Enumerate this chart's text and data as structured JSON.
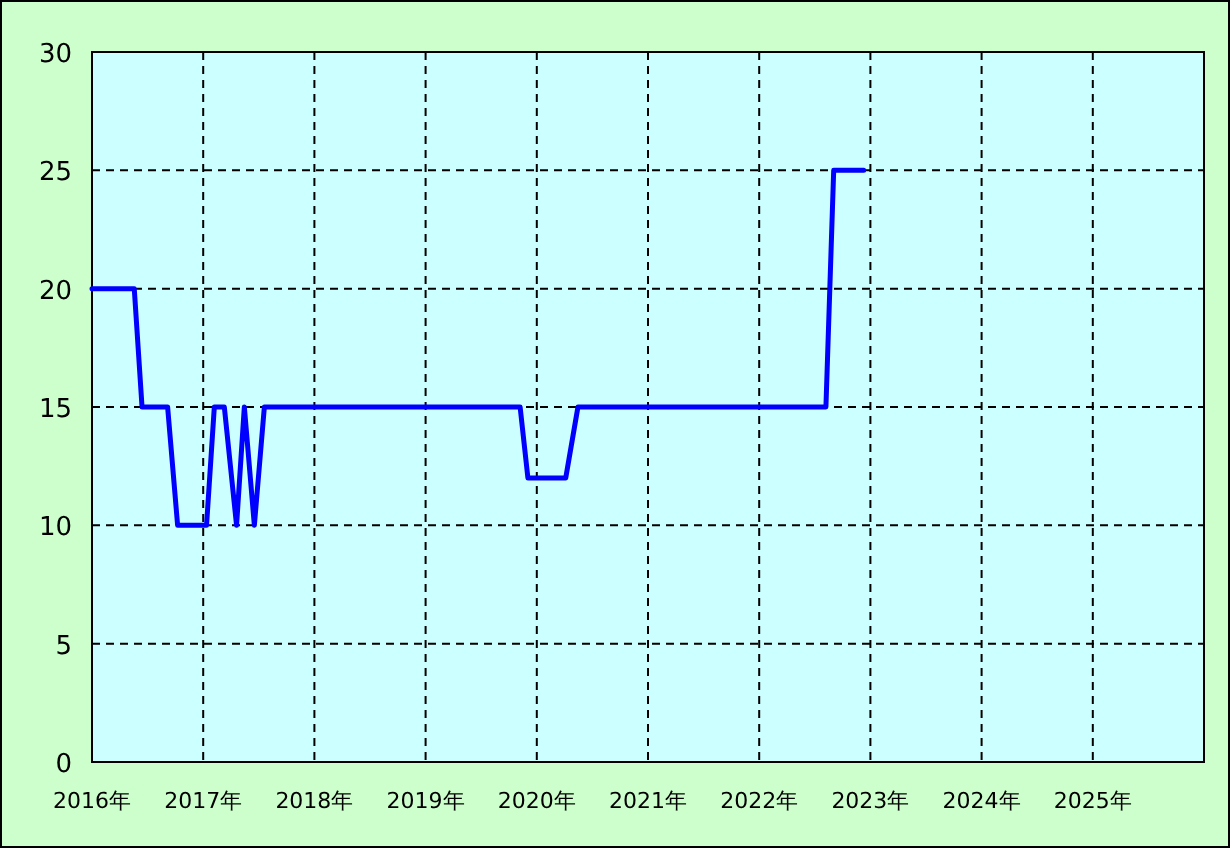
{
  "chart_data": {
    "type": "line",
    "color": "#0000ff",
    "grid": true,
    "marker": "none",
    "line_style": "solid",
    "x": [
      2016.0,
      2016.38,
      2016.45,
      2016.68,
      2016.77,
      2017.03,
      2017.1,
      2017.19,
      2017.3,
      2017.37,
      2017.46,
      2017.55,
      2019.85,
      2019.92,
      2020.26,
      2020.37,
      2022.6,
      2022.67,
      2022.94
    ],
    "values": [
      20,
      20,
      15,
      15,
      10,
      10,
      15,
      15,
      10,
      15,
      10,
      15,
      15,
      12,
      12,
      15,
      15,
      25,
      25
    ],
    "xlim": [
      2016,
      2026
    ],
    "xticks": [
      {
        "value": 2016,
        "label": "2016年"
      },
      {
        "value": 2017,
        "label": "2017年"
      },
      {
        "value": 2018,
        "label": "2018年"
      },
      {
        "value": 2019,
        "label": "2019年"
      },
      {
        "value": 2020,
        "label": "2020年"
      },
      {
        "value": 2021,
        "label": "2021年"
      },
      {
        "value": 2022,
        "label": "2022年"
      },
      {
        "value": 2023,
        "label": "2023年"
      },
      {
        "value": 2024,
        "label": "2024年"
      },
      {
        "value": 2025,
        "label": "2025年"
      }
    ],
    "ylim": [
      0,
      30
    ],
    "yticks": [
      0,
      5,
      10,
      15,
      20,
      25,
      30
    ]
  }
}
